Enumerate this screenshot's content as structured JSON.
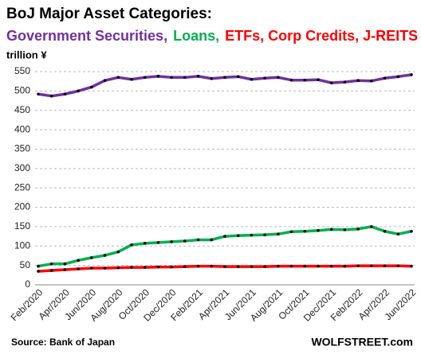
{
  "chart_data": {
    "type": "line",
    "title": "BoJ Major Asset Categories:",
    "y_label": "trillion ¥",
    "source": "Source: Bank of Japan",
    "brand": "WOLFSTREET.com",
    "categories": [
      "Feb/2020",
      null,
      "Apr/2020",
      null,
      "Jun/2020",
      null,
      "Aug/2020",
      null,
      "Oct/2020",
      null,
      "Dec/2020",
      null,
      "Feb/2021",
      null,
      "Apr/2021",
      null,
      "Jun/2021",
      null,
      "Aug/2021",
      null,
      "Oct/2021",
      null,
      "Dec/2021",
      null,
      "Feb/2022",
      null,
      "Apr/2022",
      null,
      "Jun/2022"
    ],
    "series": [
      {
        "name": "Government Securities,",
        "color": "#7030a0",
        "values": [
          492,
          487,
          492,
          500,
          510,
          527,
          535,
          530,
          535,
          538,
          535,
          535,
          538,
          532,
          535,
          537,
          530,
          533,
          535,
          528,
          528,
          529,
          521,
          523,
          527,
          526,
          533,
          537,
          542
        ]
      },
      {
        "name": "Loans,",
        "color": "#00b050",
        "values": [
          48,
          54,
          54,
          63,
          70,
          76,
          85,
          103,
          107,
          109,
          111,
          113,
          116,
          116,
          125,
          127,
          128,
          129,
          131,
          137,
          138,
          140,
          143,
          142,
          144,
          150,
          138,
          131,
          138
        ]
      },
      {
        "name": "ETFs, Corp Credits, J-REITS",
        "color": "#ff0000",
        "values": [
          35,
          37,
          39,
          41,
          43,
          43,
          44,
          45,
          45,
          46,
          46,
          47,
          48,
          48,
          47,
          47,
          47,
          47,
          48,
          48,
          48,
          48,
          48,
          48,
          49,
          49,
          49,
          49,
          48
        ]
      }
    ],
    "ylim": [
      0,
      550
    ],
    "yticks": [
      0,
      50,
      100,
      150,
      200,
      250,
      300,
      350,
      400,
      450,
      500,
      550
    ],
    "grid": true
  }
}
